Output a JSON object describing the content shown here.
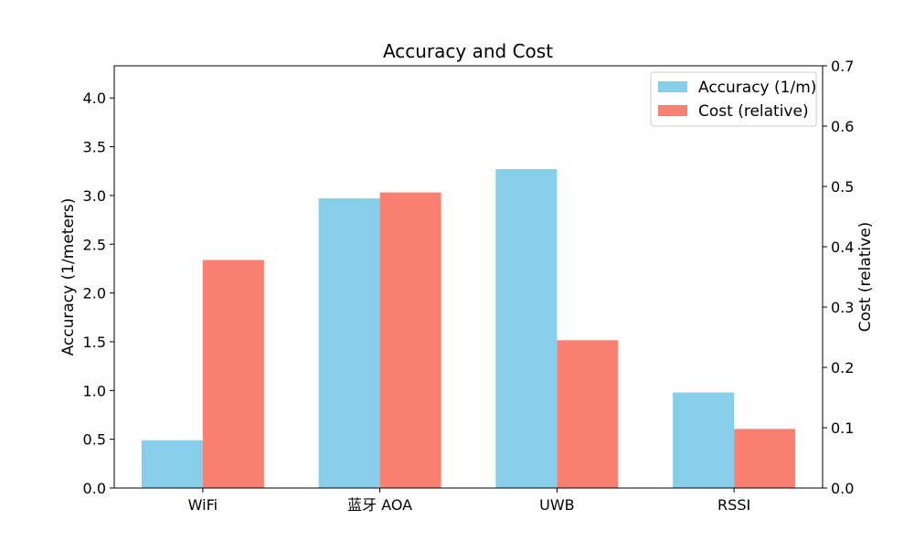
{
  "chart_data": {
    "type": "bar",
    "title": "Accuracy and Cost",
    "categories": [
      "WiFi",
      "蓝牙 AOA",
      "UWB",
      "RSSI"
    ],
    "xlabel": "",
    "y_left": {
      "label": "Accuracy (1/meters)",
      "range": [
        0,
        4.33
      ],
      "ticks": [
        "0.0",
        "0.5",
        "1.0",
        "1.5",
        "2.0",
        "2.5",
        "3.0",
        "3.5",
        "4.0"
      ],
      "tick_values": [
        0,
        0.5,
        1.0,
        1.5,
        2.0,
        2.5,
        3.0,
        3.5,
        4.0
      ]
    },
    "y_right": {
      "label": "Cost (relative)",
      "range": [
        0,
        0.7
      ],
      "ticks": [
        "0.0",
        "0.1",
        "0.2",
        "0.3",
        "0.4",
        "0.5",
        "0.6",
        "0.7"
      ],
      "tick_values": [
        0,
        0.1,
        0.2,
        0.3,
        0.4,
        0.5,
        0.6,
        0.7
      ]
    },
    "series": [
      {
        "name": "Accuracy (1/m)",
        "axis": "left",
        "color": "#87CEEB",
        "values": [
          0.49,
          2.97,
          3.27,
          0.98
        ]
      },
      {
        "name": "Cost (relative)",
        "axis": "right",
        "color": "#FA8072",
        "values": [
          0.378,
          0.49,
          0.245,
          0.098
        ]
      }
    ],
    "legend_position": "top-right",
    "grid": false
  }
}
